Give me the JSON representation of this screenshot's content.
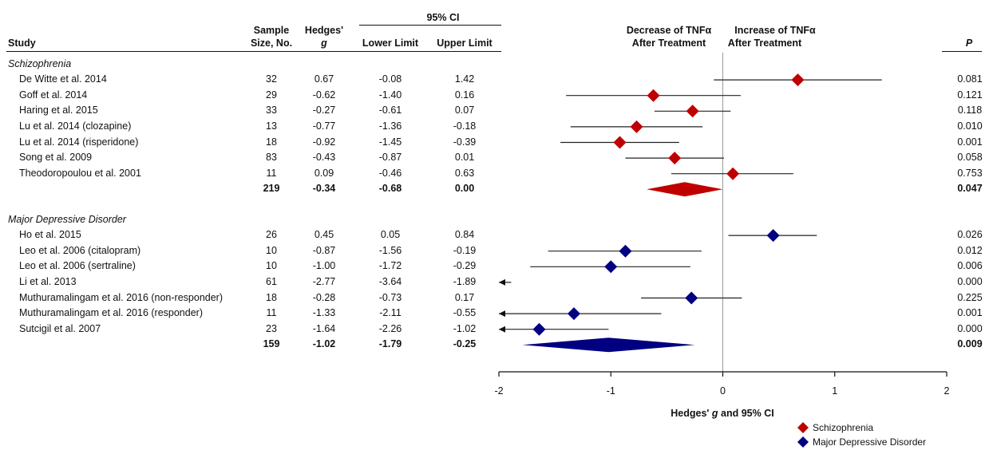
{
  "table": {
    "headers": {
      "study": "Study",
      "sample_size_line1": "Sample",
      "sample_size_line2": "Size, No.",
      "hedges_line1": "Hedges'",
      "hedges_line2": "g",
      "ci_group": "95% CI",
      "lower": "Lower Limit",
      "upper": "Upper Limit",
      "p": "P"
    },
    "groups": [
      {
        "name": "Schizophrenia",
        "color": "#c00000",
        "rows": [
          {
            "study": "De Witte et al. 2014",
            "n": "32",
            "g": "0.67",
            "lower": "-0.08",
            "upper": "1.42",
            "p": "0.081"
          },
          {
            "study": "Goff et al. 2014",
            "n": "29",
            "g": "-0.62",
            "lower": "-1.40",
            "upper": "0.16",
            "p": "0.121"
          },
          {
            "study": "Haring et al. 2015",
            "n": "33",
            "g": "-0.27",
            "lower": "-0.61",
            "upper": "0.07",
            "p": "0.118"
          },
          {
            "study": "Lu et al. 2014 (clozapine)",
            "n": "13",
            "g": "-0.77",
            "lower": "-1.36",
            "upper": "-0.18",
            "p": "0.010"
          },
          {
            "study": "Lu et al. 2014 (risperidone)",
            "n": "18",
            "g": "-0.92",
            "lower": "-1.45",
            "upper": "-0.39",
            "p": "0.001"
          },
          {
            "study": "Song et al. 2009",
            "n": "83",
            "g": "-0.43",
            "lower": "-0.87",
            "upper": "0.01",
            "p": "0.058"
          },
          {
            "study": "Theodoropoulou et al. 2001",
            "n": "11",
            "g": "0.09",
            "lower": "-0.46",
            "upper": "0.63",
            "p": "0.753"
          }
        ],
        "summary": {
          "n": "219",
          "g": "-0.34",
          "lower": "-0.68",
          "upper": "0.00",
          "p": "0.047"
        }
      },
      {
        "name": "Major Depressive Disorder",
        "color": "#000080",
        "rows": [
          {
            "study": "Ho et al. 2015",
            "n": "26",
            "g": "0.45",
            "lower": "0.05",
            "upper": "0.84",
            "p": "0.026"
          },
          {
            "study": "Leo et al. 2006 (citalopram)",
            "n": "10",
            "g": "-0.87",
            "lower": "-1.56",
            "upper": "-0.19",
            "p": "0.012"
          },
          {
            "study": "Leo et al. 2006 (sertraline)",
            "n": "10",
            "g": "-1.00",
            "lower": "-1.72",
            "upper": "-0.29",
            "p": "0.006"
          },
          {
            "study": "Li et al. 2013",
            "n": "61",
            "g": "-2.77",
            "lower": "-3.64",
            "upper": "-1.89",
            "p": "0.000"
          },
          {
            "study": "Muthuramalingam et al. 2016 (non-responder)",
            "n": "18",
            "g": "-0.28",
            "lower": "-0.73",
            "upper": "0.17",
            "p": "0.225"
          },
          {
            "study": "Muthuramalingam et al. 2016 (responder)",
            "n": "11",
            "g": "-1.33",
            "lower": "-2.11",
            "upper": "-0.55",
            "p": "0.001"
          },
          {
            "study": "Sutcigil et al. 2007",
            "n": "23",
            "g": "-1.64",
            "lower": "-2.26",
            "upper": "-1.02",
            "p": "0.000"
          }
        ],
        "summary": {
          "n": "159",
          "g": "-1.02",
          "lower": "-1.79",
          "upper": "-0.25",
          "p": "0.009"
        }
      }
    ]
  },
  "chart_data": {
    "type": "forest",
    "direction_labels": {
      "left_line1": "Decrease of TNFα",
      "left_line2": "After Treatment",
      "right_line1": "Increase of TNFα",
      "right_line2": "After Treatment"
    },
    "xlabel_pre": "Hedges' ",
    "xlabel_italic": "g",
    "xlabel_post": " and 95% CI",
    "xlim": [
      -2,
      2
    ],
    "xticks": [
      -2,
      -1,
      0,
      1,
      2
    ],
    "xtick_labels": [
      "-2",
      "-1",
      "0",
      "1",
      "2"
    ],
    "legend": [
      {
        "name": "Schizophrenia",
        "color": "#c00000"
      },
      {
        "name": "Major Depressive Disorder",
        "color": "#000080"
      }
    ],
    "legend_position": "bottom-right",
    "series": [
      {
        "name": "Schizophrenia",
        "color": "#c00000",
        "points": [
          {
            "g": 0.67,
            "lower": -0.08,
            "upper": 1.42
          },
          {
            "g": -0.62,
            "lower": -1.4,
            "upper": 0.16
          },
          {
            "g": -0.27,
            "lower": -0.61,
            "upper": 0.07
          },
          {
            "g": -0.77,
            "lower": -1.36,
            "upper": -0.18
          },
          {
            "g": -0.92,
            "lower": -1.45,
            "upper": -0.39
          },
          {
            "g": -0.43,
            "lower": -0.87,
            "upper": 0.01
          },
          {
            "g": 0.09,
            "lower": -0.46,
            "upper": 0.63
          }
        ],
        "summary": {
          "g": -0.34,
          "lower": -0.68,
          "upper": 0.0
        }
      },
      {
        "name": "Major Depressive Disorder",
        "color": "#000080",
        "points": [
          {
            "g": 0.45,
            "lower": 0.05,
            "upper": 0.84
          },
          {
            "g": -0.87,
            "lower": -1.56,
            "upper": -0.19
          },
          {
            "g": -1.0,
            "lower": -1.72,
            "upper": -0.29
          },
          {
            "g": -2.77,
            "lower": -3.64,
            "upper": -1.89
          },
          {
            "g": -0.28,
            "lower": -0.73,
            "upper": 0.17
          },
          {
            "g": -1.33,
            "lower": -2.11,
            "upper": -0.55
          },
          {
            "g": -1.64,
            "lower": -2.26,
            "upper": -1.02
          }
        ],
        "summary": {
          "g": -1.02,
          "lower": -1.79,
          "upper": -0.25
        }
      }
    ]
  }
}
